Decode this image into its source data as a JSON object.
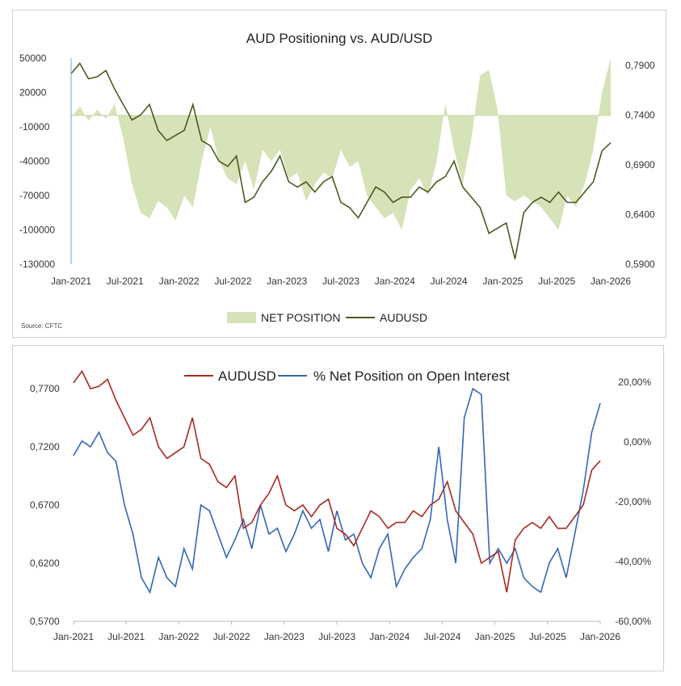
{
  "chart_data": [
    {
      "type": "area",
      "title": "AUD Positioning vs. AUD/USD",
      "source": "Source: CFTC",
      "x_ticks": [
        "Jan-2021",
        "Jul-2021",
        "Jan-2022",
        "Jul-2022",
        "Jan-2023",
        "Jul-2023",
        "Jan-2024",
        "Jul-2024",
        "Jan-2025",
        "Jul-2025",
        "Jan-2026"
      ],
      "x_range": [
        "2021-01",
        "2026-03"
      ],
      "y_left_ticks": [
        "50000",
        "20000",
        "-10000",
        "-40000",
        "-70000",
        "-100000",
        "-130000"
      ],
      "y_left_range": [
        -130000,
        50000
      ],
      "y_right_ticks": [
        "0,7900",
        "0,7400",
        "0,6900",
        "0,6400",
        "0,5900"
      ],
      "y_right_range": [
        0.59,
        0.79
      ],
      "legend": [
        "NET POSITION",
        "AUDUSD"
      ],
      "legend_position": "bottom",
      "colors": {
        "net_position": "#d6e2b8",
        "audusd": "#4b5a1e"
      },
      "series": [
        {
          "name": "NET POSITION",
          "axis": "left",
          "x": [
            "2021-01",
            "2021-02",
            "2021-03",
            "2021-04",
            "2021-05",
            "2021-06",
            "2021-07",
            "2021-08",
            "2021-09",
            "2021-10",
            "2021-11",
            "2021-12",
            "2022-01",
            "2022-02",
            "2022-03",
            "2022-04",
            "2022-05",
            "2022-06",
            "2022-07",
            "2022-08",
            "2022-09",
            "2022-10",
            "2022-11",
            "2022-12",
            "2023-01",
            "2023-02",
            "2023-03",
            "2023-04",
            "2023-05",
            "2023-06",
            "2023-07",
            "2023-08",
            "2023-09",
            "2023-10",
            "2023-11",
            "2023-12",
            "2024-01",
            "2024-02",
            "2024-03",
            "2024-04",
            "2024-05",
            "2024-06",
            "2024-07",
            "2024-08",
            "2024-09",
            "2024-10",
            "2024-11",
            "2024-12",
            "2025-01",
            "2025-02",
            "2025-03",
            "2025-04",
            "2025-05",
            "2025-06",
            "2025-07",
            "2025-08",
            "2025-09",
            "2025-10",
            "2025-11",
            "2025-12",
            "2026-01",
            "2026-02",
            "2026-03"
          ],
          "values": [
            -2000,
            8000,
            -5000,
            5000,
            -3000,
            10000,
            -20000,
            -60000,
            -85000,
            -90000,
            -75000,
            -80000,
            -92000,
            -70000,
            -80000,
            -40000,
            -10000,
            -40000,
            -55000,
            -60000,
            -40000,
            -65000,
            -30000,
            -40000,
            -30000,
            -55000,
            -50000,
            -75000,
            -60000,
            -50000,
            -55000,
            -30000,
            -45000,
            -40000,
            -70000,
            -80000,
            -90000,
            -85000,
            -100000,
            -65000,
            -55000,
            -70000,
            -40000,
            10000,
            -30000,
            -60000,
            -20000,
            35000,
            40000,
            5000,
            -70000,
            -75000,
            -70000,
            -75000,
            -80000,
            -90000,
            -100000,
            -70000,
            -80000,
            -60000,
            -30000,
            20000,
            50000
          ]
        },
        {
          "name": "AUDUSD",
          "axis": "right",
          "x": [
            "2021-01",
            "2021-02",
            "2021-03",
            "2021-04",
            "2021-05",
            "2021-06",
            "2021-07",
            "2021-08",
            "2021-09",
            "2021-10",
            "2021-11",
            "2021-12",
            "2022-01",
            "2022-02",
            "2022-03",
            "2022-04",
            "2022-05",
            "2022-06",
            "2022-07",
            "2022-08",
            "2022-09",
            "2022-10",
            "2022-11",
            "2022-12",
            "2023-01",
            "2023-02",
            "2023-03",
            "2023-04",
            "2023-05",
            "2023-06",
            "2023-07",
            "2023-08",
            "2023-09",
            "2023-10",
            "2023-11",
            "2023-12",
            "2024-01",
            "2024-02",
            "2024-03",
            "2024-04",
            "2024-05",
            "2024-06",
            "2024-07",
            "2024-08",
            "2024-09",
            "2024-10",
            "2024-11",
            "2024-12",
            "2025-01",
            "2025-02",
            "2025-03",
            "2025-04",
            "2025-05",
            "2025-06",
            "2025-07",
            "2025-08",
            "2025-09",
            "2025-10",
            "2025-11",
            "2025-12",
            "2026-01",
            "2026-02",
            "2026-03"
          ],
          "values": [
            0.775,
            0.785,
            0.77,
            0.772,
            0.778,
            0.76,
            0.745,
            0.73,
            0.735,
            0.745,
            0.72,
            0.71,
            0.715,
            0.72,
            0.745,
            0.71,
            0.705,
            0.69,
            0.685,
            0.695,
            0.65,
            0.655,
            0.67,
            0.68,
            0.695,
            0.67,
            0.665,
            0.67,
            0.66,
            0.67,
            0.675,
            0.65,
            0.645,
            0.635,
            0.65,
            0.665,
            0.66,
            0.65,
            0.655,
            0.655,
            0.665,
            0.66,
            0.67,
            0.675,
            0.69,
            0.665,
            0.655,
            0.645,
            0.62,
            0.625,
            0.63,
            0.595,
            0.64,
            0.65,
            0.655,
            0.65,
            0.66,
            0.65,
            0.65,
            0.66,
            0.67,
            0.7,
            0.708
          ]
        }
      ]
    },
    {
      "type": "line",
      "title": "",
      "x_ticks": [
        "Jan-2021",
        "Jul-2021",
        "Jan-2022",
        "Jul-2022",
        "Jan-2023",
        "Jul-2023",
        "Jan-2024",
        "Jul-2024",
        "Jan-2025",
        "Jul-2025",
        "Jan-2026"
      ],
      "x_range": [
        "2021-01",
        "2026-03"
      ],
      "y_left_ticks": [
        "0,7700",
        "0,7200",
        "0,6700",
        "0,6200",
        "0,5700"
      ],
      "y_left_range": [
        0.57,
        0.77
      ],
      "y_right_ticks": [
        "20,00%",
        "0,00%",
        "-20,00%",
        "-40,00%",
        "-60,00%"
      ],
      "y_right_range": [
        -60,
        20
      ],
      "legend": [
        "AUDUSD",
        "% Net Position on Open Interest"
      ],
      "legend_position": "top",
      "colors": {
        "audusd": "#a8291f",
        "net_pct": "#3466b7"
      },
      "series": [
        {
          "name": "AUDUSD",
          "axis": "left",
          "x": [
            "2021-01",
            "2021-02",
            "2021-03",
            "2021-04",
            "2021-05",
            "2021-06",
            "2021-07",
            "2021-08",
            "2021-09",
            "2021-10",
            "2021-11",
            "2021-12",
            "2022-01",
            "2022-02",
            "2022-03",
            "2022-04",
            "2022-05",
            "2022-06",
            "2022-07",
            "2022-08",
            "2022-09",
            "2022-10",
            "2022-11",
            "2022-12",
            "2023-01",
            "2023-02",
            "2023-03",
            "2023-04",
            "2023-05",
            "2023-06",
            "2023-07",
            "2023-08",
            "2023-09",
            "2023-10",
            "2023-11",
            "2023-12",
            "2024-01",
            "2024-02",
            "2024-03",
            "2024-04",
            "2024-05",
            "2024-06",
            "2024-07",
            "2024-08",
            "2024-09",
            "2024-10",
            "2024-11",
            "2024-12",
            "2025-01",
            "2025-02",
            "2025-03",
            "2025-04",
            "2025-05",
            "2025-06",
            "2025-07",
            "2025-08",
            "2025-09",
            "2025-10",
            "2025-11",
            "2025-12",
            "2026-01",
            "2026-02",
            "2026-03"
          ],
          "values": [
            0.775,
            0.785,
            0.77,
            0.772,
            0.778,
            0.76,
            0.745,
            0.73,
            0.735,
            0.745,
            0.72,
            0.71,
            0.715,
            0.72,
            0.745,
            0.71,
            0.705,
            0.69,
            0.685,
            0.695,
            0.65,
            0.655,
            0.67,
            0.68,
            0.695,
            0.67,
            0.665,
            0.67,
            0.66,
            0.67,
            0.675,
            0.65,
            0.645,
            0.635,
            0.65,
            0.665,
            0.66,
            0.65,
            0.655,
            0.655,
            0.665,
            0.66,
            0.67,
            0.675,
            0.69,
            0.665,
            0.655,
            0.645,
            0.62,
            0.625,
            0.63,
            0.595,
            0.64,
            0.65,
            0.655,
            0.65,
            0.66,
            0.65,
            0.65,
            0.66,
            0.67,
            0.7,
            0.708
          ]
        },
        {
          "name": "% Net Position on Open Interest",
          "axis": "right",
          "x": [
            "2021-01",
            "2021-02",
            "2021-03",
            "2021-04",
            "2021-05",
            "2021-06",
            "2021-07",
            "2021-08",
            "2021-09",
            "2021-10",
            "2021-11",
            "2021-12",
            "2022-01",
            "2022-02",
            "2022-03",
            "2022-04",
            "2022-05",
            "2022-06",
            "2022-07",
            "2022-08",
            "2022-09",
            "2022-10",
            "2022-11",
            "2022-12",
            "2023-01",
            "2023-02",
            "2023-03",
            "2023-04",
            "2023-05",
            "2023-06",
            "2023-07",
            "2023-08",
            "2023-09",
            "2023-10",
            "2023-11",
            "2023-12",
            "2024-01",
            "2024-02",
            "2024-03",
            "2024-04",
            "2024-05",
            "2024-06",
            "2024-07",
            "2024-08",
            "2024-09",
            "2024-10",
            "2024-11",
            "2024-12",
            "2025-01",
            "2025-02",
            "2025-03",
            "2025-04",
            "2025-05",
            "2025-06",
            "2025-07",
            "2025-08",
            "2025-09",
            "2025-10",
            "2025-11",
            "2025-12",
            "2026-01",
            "2026-02",
            "2026-03"
          ],
          "values": [
            -3,
            2,
            0,
            5,
            -2,
            -5,
            -20,
            -30,
            -45,
            -50,
            -38,
            -45,
            -48,
            -35,
            -42,
            -20,
            -22,
            -30,
            -38,
            -32,
            -25,
            -35,
            -20,
            -30,
            -28,
            -36,
            -30,
            -22,
            -28,
            -25,
            -36,
            -22,
            -32,
            -30,
            -40,
            -45,
            -35,
            -30,
            -48,
            -42,
            -38,
            -35,
            -25,
            0,
            -25,
            -40,
            10,
            20,
            18,
            -40,
            -35,
            -40,
            -35,
            -45,
            -48,
            -50,
            -40,
            -35,
            -45,
            -30,
            -15,
            5,
            15
          ]
        }
      ]
    }
  ]
}
